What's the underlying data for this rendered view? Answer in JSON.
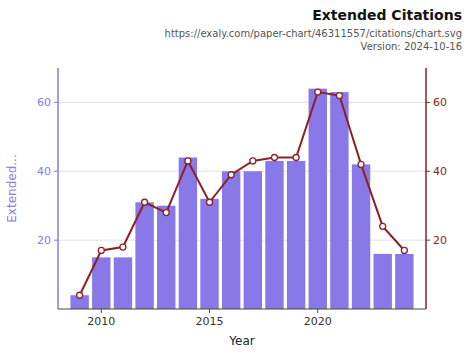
{
  "chart_data": {
    "type": "bar",
    "title": "Extended Citations",
    "subtitle": [
      "https://exaly.com/paper-chart/46311557/citations/chart.svg",
      "Version: 2024-10-16"
    ],
    "xlabel": "Year",
    "ylabel": "Extended...",
    "x": [
      2009,
      2010,
      2011,
      2012,
      2013,
      2014,
      2015,
      2016,
      2017,
      2018,
      2019,
      2020,
      2021,
      2022,
      2023,
      2024
    ],
    "series": [
      {
        "type": "bar",
        "color": "#8878E8",
        "values": [
          4,
          15,
          15,
          31,
          30,
          44,
          32,
          40,
          40,
          43,
          43,
          64,
          63,
          42,
          16,
          16
        ]
      },
      {
        "type": "line",
        "axis": "y2",
        "color": "#8B2222",
        "marker": "circle",
        "values": [
          4,
          17,
          18,
          31,
          28,
          43,
          31,
          39,
          43,
          44,
          44,
          63,
          62,
          42,
          24,
          17
        ]
      }
    ],
    "xlim": [
      2008,
      2025
    ],
    "xticks": [
      2010,
      2015,
      2020
    ],
    "ylim": [
      0,
      70
    ],
    "yticks": [
      20,
      40,
      60
    ],
    "y2lim": [
      0,
      70
    ],
    "y2ticks": [
      20,
      40,
      60
    ],
    "grid": true
  }
}
